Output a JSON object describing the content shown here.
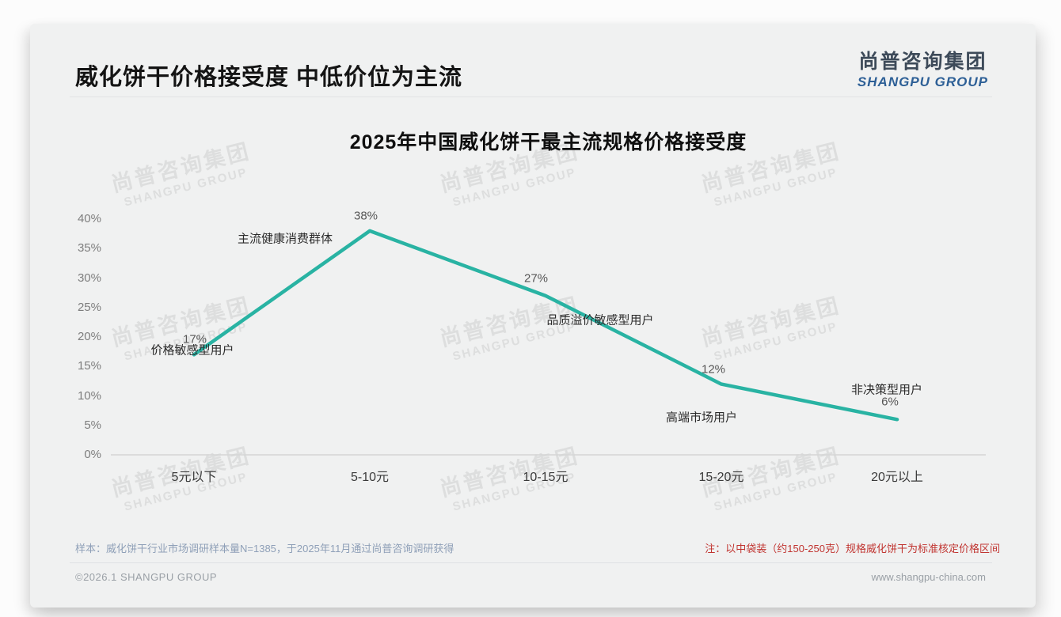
{
  "header": {
    "title": "威化饼干价格接受度 中低价位为主流"
  },
  "logo": {
    "name_cn": "尚普咨询集团",
    "name_en": "SHANGPU GROUP"
  },
  "watermark": {
    "line1": "尚普咨询集团",
    "line2": "SHANGPU GROUP"
  },
  "chart_data": {
    "type": "line",
    "title": "2025年中国威化饼干最主流规格价格接受度",
    "categories": [
      "5元以下",
      "5-10元",
      "10-15元",
      "15-20元",
      "20元以上"
    ],
    "values": [
      17,
      38,
      27,
      12,
      6
    ],
    "unit": "%",
    "value_labels": [
      "17%",
      "38%",
      "27%",
      "12%",
      "6%"
    ],
    "annotations": [
      "价格敏感型用户",
      "主流健康消费群体",
      "品质溢价敏感型用户",
      "高端市场用户",
      "非决策型用户"
    ],
    "ylim": [
      0,
      40
    ],
    "ytick_step": 5,
    "ytick_labels": [
      "0%",
      "5%",
      "10%",
      "15%",
      "20%",
      "25%",
      "30%",
      "35%",
      "40%"
    ],
    "line_color": "#29b3a3",
    "axis_color": "#d5d5d5",
    "grid": false,
    "legend": "none"
  },
  "notes": {
    "sample": "样本：威化饼干行业市场调研样本量N=1385，于2025年11月通过尚普咨询调研获得",
    "remark": "注：以中袋装（约150-250克）规格威化饼干为标准核定价格区间"
  },
  "footer": {
    "left": "©2026.1 SHANGPU GROUP",
    "right": "www.shangpu-china.com"
  },
  "colors": {
    "accent_teal": "#29b3a3",
    "note_red": "#c13531",
    "logo_blue": "#2d5f96",
    "logo_dark": "#3d4a59"
  }
}
